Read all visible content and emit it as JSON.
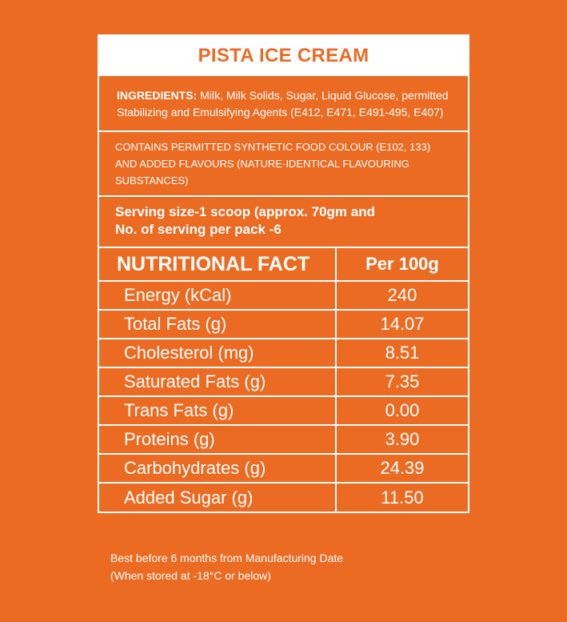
{
  "label": {
    "title": "PISTA ICE CREAM",
    "ingredients_heading": "INGREDIENTS:",
    "ingredients_text": " Milk, Milk Solids, Sugar, Liquid Glucose, permitted Stabilizing and Emulsifying Agents (E412, E471, E491-495, E407)",
    "colour_note": "CONTAINS PERMITTED SYNTHETIC FOOD COLOUR (E102, 133) AND ADDED FLAVOURS (NATURE-IDENTICAL FLAVOURING SUBSTANCES)",
    "serving_line1": "Serving size-1 scoop (approx. 70gm and",
    "serving_line2": "No. of serving per pack -6"
  },
  "facts": {
    "header_name": "NUTRITIONAL FACT",
    "header_value": "Per 100g",
    "rows": [
      {
        "name": "Energy (kCal)",
        "value": "240"
      },
      {
        "name": "Total Fats (g)",
        "value": "14.07"
      },
      {
        "name": "Cholesterol (mg)",
        "value": "8.51"
      },
      {
        "name": "Saturated Fats (g)",
        "value": "7.35"
      },
      {
        "name": "Trans Fats (g)",
        "value": "0.00"
      },
      {
        "name": "Proteins (g)",
        "value": "3.90"
      },
      {
        "name": "Carbohydrates (g)",
        "value": "24.39"
      },
      {
        "name": "Added Sugar (g)",
        "value": "11.50"
      }
    ]
  },
  "footer": {
    "line1": "Best before 6 months from Manufacturing Date",
    "line2": "(When stored at -18°C or below)"
  },
  "colors": {
    "background": "#eb6b23",
    "foreground": "#ffffff"
  }
}
